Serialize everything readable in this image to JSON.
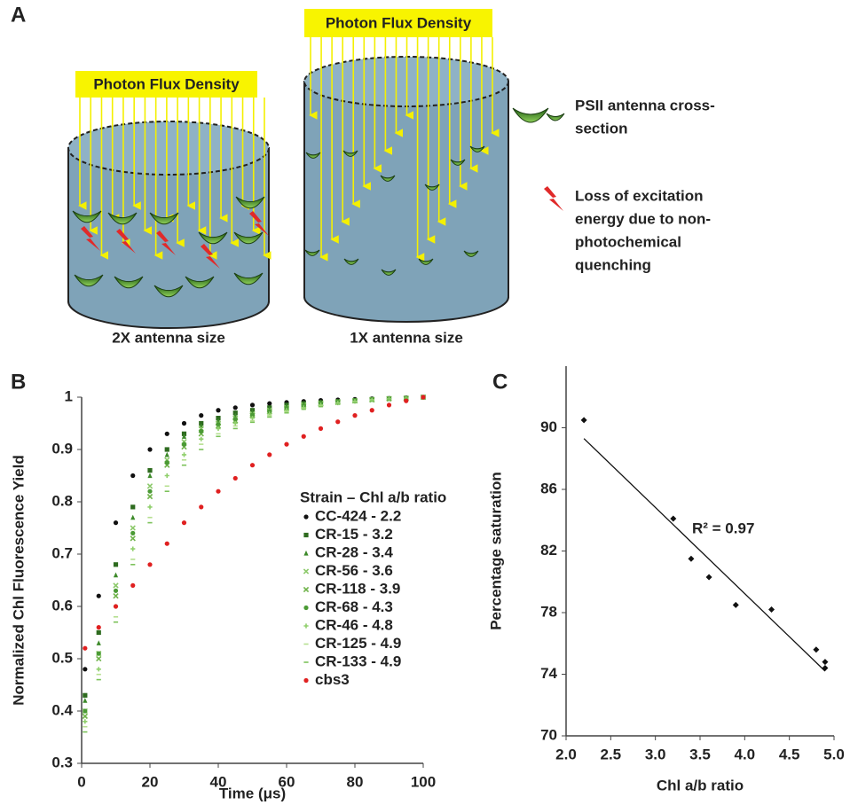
{
  "panel_labels": [
    "A",
    "B",
    "C"
  ],
  "diagram": {
    "cylinders": [
      {
        "flux_label": "Photon Flux Density",
        "caption": "2X antenna size"
      },
      {
        "flux_label": "Photon Flux Density",
        "caption": "1X antenna size"
      }
    ],
    "legend": [
      {
        "lines": [
          "PSII antenna cross-",
          "section"
        ]
      },
      {
        "lines": [
          "Loss of excitation",
          "energy due to non-",
          "photochemical",
          "quenching"
        ]
      }
    ]
  },
  "chart_data": [
    {
      "type": "scatter",
      "x_label": "Time (μs)",
      "y_label": "Normalized Chl Fluorescence Yield",
      "legend_title": "Strain – Chl a/b ratio",
      "xlim": [
        0,
        100
      ],
      "xticks": [
        0,
        20,
        40,
        60,
        80,
        100
      ],
      "ylim": [
        0.3,
        1
      ],
      "yticks": [
        0.3,
        0.4,
        0.5,
        0.6,
        0.7,
        0.8,
        0.9,
        1
      ],
      "grid": false,
      "x": [
        1,
        5,
        10,
        15,
        20,
        25,
        30,
        35,
        40,
        45,
        50,
        55,
        60,
        65,
        70,
        75,
        80,
        85,
        90,
        95,
        100
      ],
      "series": [
        {
          "name": "CC-424 - 2.2",
          "color": "#111111",
          "marker": "circle",
          "values": [
            0.48,
            0.62,
            0.76,
            0.85,
            0.9,
            0.93,
            0.95,
            0.965,
            0.975,
            0.98,
            0.985,
            0.988,
            0.99,
            0.992,
            0.994,
            0.995,
            0.996,
            0.997,
            0.998,
            0.999,
            1.0
          ]
        },
        {
          "name": "CR-15 - 3.2",
          "color": "#2e6b1f",
          "marker": "square",
          "values": [
            0.43,
            0.55,
            0.68,
            0.79,
            0.86,
            0.9,
            0.93,
            0.95,
            0.96,
            0.97,
            0.975,
            0.98,
            0.985,
            0.988,
            0.99,
            0.992,
            0.994,
            0.996,
            0.997,
            0.998,
            1.0
          ]
        },
        {
          "name": "CR-28 - 3.4",
          "color": "#3d8a2a",
          "marker": "triangle",
          "values": [
            0.42,
            0.53,
            0.66,
            0.77,
            0.85,
            0.89,
            0.925,
            0.945,
            0.955,
            0.965,
            0.972,
            0.978,
            0.983,
            0.987,
            0.99,
            0.992,
            0.994,
            0.996,
            0.997,
            0.998,
            1.0
          ]
        },
        {
          "name": "CR-56 - 3.6",
          "color": "#8cc96a",
          "marker": "cross",
          "values": [
            0.4,
            0.51,
            0.64,
            0.75,
            0.83,
            0.88,
            0.915,
            0.94,
            0.95,
            0.96,
            0.968,
            0.975,
            0.98,
            0.985,
            0.988,
            0.991,
            0.993,
            0.995,
            0.997,
            0.998,
            1.0
          ]
        },
        {
          "name": "CR-118 - 3.9",
          "color": "#6fb34a",
          "marker": "cross",
          "values": [
            0.39,
            0.5,
            0.62,
            0.73,
            0.81,
            0.87,
            0.905,
            0.93,
            0.945,
            0.955,
            0.965,
            0.972,
            0.978,
            0.983,
            0.987,
            0.99,
            0.993,
            0.995,
            0.997,
            0.998,
            1.0
          ]
        },
        {
          "name": "CR-68 - 4.3",
          "color": "#4b9a35",
          "marker": "circle",
          "values": [
            0.4,
            0.51,
            0.63,
            0.74,
            0.82,
            0.875,
            0.91,
            0.935,
            0.948,
            0.958,
            0.966,
            0.973,
            0.979,
            0.984,
            0.988,
            0.991,
            0.993,
            0.995,
            0.997,
            0.998,
            1.0
          ]
        },
        {
          "name": "CR-46 - 4.8",
          "color": "#8fcf6b",
          "marker": "plus",
          "values": [
            0.38,
            0.48,
            0.6,
            0.71,
            0.79,
            0.85,
            0.89,
            0.92,
            0.94,
            0.95,
            0.96,
            0.968,
            0.975,
            0.98,
            0.985,
            0.989,
            0.992,
            0.995,
            0.997,
            0.998,
            1.0
          ]
        },
        {
          "name": "CR-125 - 4.9",
          "color": "#b5df8f",
          "marker": "dash",
          "values": [
            0.37,
            0.47,
            0.58,
            0.69,
            0.77,
            0.83,
            0.88,
            0.91,
            0.93,
            0.945,
            0.955,
            0.965,
            0.972,
            0.978,
            0.983,
            0.988,
            0.991,
            0.994,
            0.996,
            0.998,
            1.0
          ]
        },
        {
          "name": "CR-133 - 4.9",
          "color": "#7cc25a",
          "marker": "dash",
          "values": [
            0.36,
            0.46,
            0.57,
            0.68,
            0.76,
            0.82,
            0.87,
            0.9,
            0.925,
            0.94,
            0.952,
            0.962,
            0.97,
            0.977,
            0.982,
            0.987,
            0.99,
            0.993,
            0.996,
            0.998,
            1.0
          ]
        },
        {
          "name": "cbs3",
          "color": "#e02020",
          "marker": "circle",
          "values": [
            0.52,
            0.56,
            0.6,
            0.64,
            0.68,
            0.72,
            0.76,
            0.79,
            0.82,
            0.845,
            0.87,
            0.89,
            0.91,
            0.925,
            0.94,
            0.953,
            0.965,
            0.975,
            0.985,
            0.993,
            1.0
          ]
        }
      ]
    },
    {
      "type": "scatter",
      "x_label": "Chl a/b ratio",
      "y_label": "Percentage saturation",
      "annotation": "R² = 0.97",
      "xlim": [
        2,
        5
      ],
      "xticks": [
        {
          "value": 2,
          "label": "2.0"
        },
        {
          "value": 2.5,
          "label": "2.5"
        },
        {
          "value": 3,
          "label": "3.0"
        },
        {
          "value": 3.5,
          "label": "3.5"
        },
        {
          "value": 4,
          "label": "4.0"
        },
        {
          "value": 4.5,
          "label": "4.5"
        },
        {
          "value": 5,
          "label": "5.0"
        }
      ],
      "ylim": [
        70,
        94
      ],
      "yticks": [
        70,
        74,
        78,
        82,
        86,
        90
      ],
      "grid": false,
      "x": [
        2.2,
        3.2,
        3.4,
        3.6,
        3.9,
        4.3,
        4.8,
        4.9,
        4.9
      ],
      "series": [
        {
          "color": "#111111",
          "marker": "diamond",
          "values": [
            90.5,
            84.1,
            81.5,
            80.3,
            78.5,
            78.2,
            75.6,
            74.8,
            74.4
          ]
        }
      ],
      "trendline": {
        "x": [
          2.2,
          4.9
        ],
        "y": [
          89.3,
          74.2
        ],
        "color": "#111111"
      }
    }
  ]
}
